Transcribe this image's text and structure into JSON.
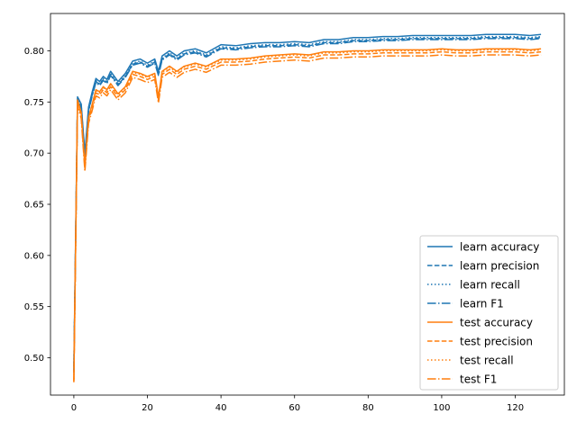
{
  "chart_data": {
    "type": "line",
    "title": "",
    "xlabel": "",
    "ylabel": "",
    "xlim": [
      -6.35,
      133.35
    ],
    "ylim": [
      0.4635,
      0.8365
    ],
    "xticks": [
      0,
      20,
      40,
      60,
      80,
      100,
      120
    ],
    "xtick_labels": [
      "0",
      "20",
      "40",
      "60",
      "80",
      "100",
      "120"
    ],
    "yticks": [
      0.5,
      0.55,
      0.6,
      0.65,
      0.7,
      0.75,
      0.8
    ],
    "ytick_labels": [
      "0.50",
      "0.55",
      "0.60",
      "0.65",
      "0.70",
      "0.75",
      "0.80"
    ],
    "grid": false,
    "legend_position": "lower-right",
    "colors": {
      "learn": "#1f77b4",
      "test": "#ff7f0e"
    },
    "x": [
      0,
      1,
      2,
      3,
      4,
      5,
      6,
      7,
      8,
      9,
      10,
      12,
      14,
      16,
      18,
      20,
      22,
      23,
      24,
      26,
      28,
      30,
      33,
      36,
      40,
      44,
      48,
      52,
      56,
      60,
      64,
      68,
      72,
      76,
      80,
      84,
      88,
      92,
      96,
      100,
      104,
      108,
      112,
      116,
      120,
      124,
      127
    ],
    "series": [
      {
        "name": "learn accuracy",
        "group": "learn",
        "style": "solid",
        "values": [
          0.49,
          0.755,
          0.748,
          0.7,
          0.745,
          0.76,
          0.773,
          0.77,
          0.775,
          0.772,
          0.78,
          0.77,
          0.778,
          0.79,
          0.792,
          0.788,
          0.792,
          0.78,
          0.795,
          0.8,
          0.795,
          0.8,
          0.802,
          0.798,
          0.806,
          0.805,
          0.807,
          0.808,
          0.808,
          0.809,
          0.808,
          0.811,
          0.811,
          0.813,
          0.813,
          0.814,
          0.814,
          0.815,
          0.815,
          0.815,
          0.815,
          0.815,
          0.816,
          0.816,
          0.816,
          0.815,
          0.816
        ]
      },
      {
        "name": "learn precision",
        "group": "learn",
        "style": "dashed",
        "values": [
          0.485,
          0.752,
          0.745,
          0.697,
          0.742,
          0.757,
          0.77,
          0.767,
          0.772,
          0.769,
          0.777,
          0.767,
          0.775,
          0.787,
          0.789,
          0.785,
          0.789,
          0.777,
          0.792,
          0.797,
          0.792,
          0.797,
          0.799,
          0.795,
          0.803,
          0.802,
          0.804,
          0.805,
          0.805,
          0.806,
          0.805,
          0.808,
          0.808,
          0.81,
          0.81,
          0.811,
          0.811,
          0.812,
          0.812,
          0.812,
          0.812,
          0.812,
          0.813,
          0.813,
          0.813,
          0.812,
          0.813
        ]
      },
      {
        "name": "learn recall",
        "group": "learn",
        "style": "dotted",
        "values": [
          0.488,
          0.753,
          0.747,
          0.695,
          0.743,
          0.758,
          0.771,
          0.768,
          0.773,
          0.77,
          0.778,
          0.768,
          0.776,
          0.788,
          0.79,
          0.786,
          0.79,
          0.778,
          0.793,
          0.798,
          0.793,
          0.798,
          0.8,
          0.796,
          0.804,
          0.803,
          0.805,
          0.806,
          0.806,
          0.807,
          0.806,
          0.809,
          0.809,
          0.811,
          0.811,
          0.812,
          0.812,
          0.813,
          0.813,
          0.813,
          0.813,
          0.813,
          0.814,
          0.814,
          0.814,
          0.813,
          0.814
        ]
      },
      {
        "name": "learn F1",
        "group": "learn",
        "style": "dashdot",
        "values": [
          0.487,
          0.75,
          0.744,
          0.692,
          0.741,
          0.756,
          0.769,
          0.766,
          0.771,
          0.768,
          0.776,
          0.766,
          0.774,
          0.786,
          0.788,
          0.784,
          0.788,
          0.776,
          0.791,
          0.796,
          0.791,
          0.796,
          0.798,
          0.794,
          0.802,
          0.801,
          0.803,
          0.804,
          0.804,
          0.805,
          0.804,
          0.807,
          0.807,
          0.809,
          0.809,
          0.81,
          0.81,
          0.811,
          0.811,
          0.811,
          0.811,
          0.811,
          0.812,
          0.812,
          0.812,
          0.811,
          0.812
        ]
      },
      {
        "name": "test accuracy",
        "group": "test",
        "style": "solid",
        "values": [
          0.478,
          0.752,
          0.74,
          0.688,
          0.735,
          0.748,
          0.762,
          0.76,
          0.765,
          0.762,
          0.768,
          0.758,
          0.765,
          0.78,
          0.778,
          0.775,
          0.778,
          0.755,
          0.78,
          0.785,
          0.78,
          0.785,
          0.788,
          0.785,
          0.792,
          0.792,
          0.793,
          0.795,
          0.796,
          0.797,
          0.796,
          0.799,
          0.799,
          0.8,
          0.8,
          0.801,
          0.801,
          0.801,
          0.801,
          0.802,
          0.801,
          0.801,
          0.802,
          0.802,
          0.802,
          0.801,
          0.802
        ]
      },
      {
        "name": "test precision",
        "group": "test",
        "style": "dashed",
        "values": [
          0.477,
          0.749,
          0.737,
          0.685,
          0.732,
          0.745,
          0.759,
          0.757,
          0.762,
          0.759,
          0.765,
          0.755,
          0.762,
          0.777,
          0.775,
          0.772,
          0.775,
          0.752,
          0.777,
          0.782,
          0.777,
          0.782,
          0.785,
          0.782,
          0.789,
          0.789,
          0.79,
          0.792,
          0.793,
          0.794,
          0.793,
          0.796,
          0.796,
          0.797,
          0.797,
          0.798,
          0.798,
          0.798,
          0.798,
          0.799,
          0.798,
          0.798,
          0.799,
          0.799,
          0.799,
          0.798,
          0.799
        ]
      },
      {
        "name": "test recall",
        "group": "test",
        "style": "dotted",
        "values": [
          0.479,
          0.751,
          0.739,
          0.687,
          0.734,
          0.747,
          0.761,
          0.759,
          0.764,
          0.761,
          0.767,
          0.757,
          0.764,
          0.779,
          0.777,
          0.774,
          0.777,
          0.754,
          0.779,
          0.784,
          0.779,
          0.784,
          0.787,
          0.784,
          0.791,
          0.791,
          0.792,
          0.794,
          0.795,
          0.796,
          0.795,
          0.798,
          0.798,
          0.799,
          0.799,
          0.8,
          0.8,
          0.8,
          0.8,
          0.801,
          0.8,
          0.8,
          0.801,
          0.801,
          0.801,
          0.8,
          0.801
        ]
      },
      {
        "name": "test F1",
        "group": "test",
        "style": "dashdot",
        "values": [
          0.476,
          0.746,
          0.734,
          0.682,
          0.729,
          0.742,
          0.756,
          0.754,
          0.759,
          0.756,
          0.762,
          0.752,
          0.759,
          0.774,
          0.772,
          0.769,
          0.772,
          0.749,
          0.774,
          0.779,
          0.774,
          0.779,
          0.782,
          0.779,
          0.786,
          0.786,
          0.787,
          0.789,
          0.79,
          0.791,
          0.79,
          0.793,
          0.793,
          0.794,
          0.794,
          0.795,
          0.795,
          0.795,
          0.795,
          0.796,
          0.795,
          0.795,
          0.796,
          0.796,
          0.796,
          0.795,
          0.796
        ]
      }
    ]
  }
}
